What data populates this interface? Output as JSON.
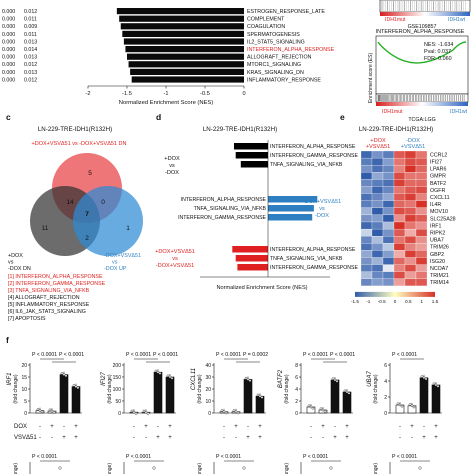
{
  "panel_a": {
    "rows": [
      {
        "p": "0.000",
        "fdr": "0.012",
        "name": "ESTROGEN_RESPONSE_LATE",
        "nes": -1.63,
        "red": false
      },
      {
        "p": "0.000",
        "fdr": "0.011",
        "name": "COMPLEMENT",
        "nes": -1.6,
        "red": false
      },
      {
        "p": "0.000",
        "fdr": "0.009",
        "name": "COAGULATION",
        "nes": -1.58,
        "red": false
      },
      {
        "p": "0.000",
        "fdr": "0.011",
        "name": "SPERMATOGENESIS",
        "nes": -1.56,
        "red": false
      },
      {
        "p": "0.000",
        "fdr": "0.013",
        "name": "IL2_STAT5_SIGNALING",
        "nes": -1.54,
        "red": false
      },
      {
        "p": "0.000",
        "fdr": "0.014",
        "name": "INTERFERON_ALPHA_RESPONSE",
        "nes": -1.52,
        "red": true
      },
      {
        "p": "0.000",
        "fdr": "0.013",
        "name": "ALLOGRAFT_REJECTION",
        "nes": -1.5,
        "red": false
      },
      {
        "p": "0.000",
        "fdr": "0.012",
        "name": "MTORC1_SIGNALING",
        "nes": -1.48,
        "red": false
      },
      {
        "p": "0.000",
        "fdr": "0.013",
        "name": "KRAS_SIGNALING_DN",
        "nes": -1.46,
        "red": false
      },
      {
        "p": "0.000",
        "fdr": "0.012",
        "name": "INFLAMMATORY_RESPONSE",
        "nes": -1.44,
        "red": false
      }
    ],
    "ticks": [
      "-2",
      "-1.5",
      "-1",
      "-0.5",
      "0"
    ],
    "xlabel": "Normalized Enrichment Score (NES)"
  },
  "panel_b": {
    "top_labels": [
      "IDH1mut",
      "IDH1wt"
    ],
    "top_dataset": "GSE109857",
    "gsea_title": "INTERFERON_ALPHA_RESPONSE",
    "stats": [
      "NES: -1.634",
      "Pval: 0.037",
      "FDR: 0.060"
    ],
    "ylabel": "Enrichment score (ES)",
    "bottom_labels": [
      "IDH1mut",
      "IDH1wt"
    ],
    "dataset": "TCGA:LGG"
  },
  "panel_c": {
    "letter": "c",
    "title": "LN-229-TRE-IDH1(R132H)",
    "set_top": "+DOX+VSVΔ51 vs -DOX+VSVΔ51 DN",
    "counts": {
      "top": "5",
      "left": "11",
      "right": "1",
      "tl": "14",
      "tr": "0",
      "lr": "2",
      "center": "7"
    },
    "left_label": [
      "+DOX",
      "vs",
      "-DOX DN"
    ],
    "right_label": [
      "-DOX+VSVΔ51",
      "vs",
      "-DOX UP"
    ],
    "legend": [
      {
        "text": "[1] INTERFERON_ALPHA_RESPONSE",
        "red": true
      },
      {
        "text": "[2] INTERFERON_GAMMA_RESPONSE",
        "red": true
      },
      {
        "text": "[3] TNFA_SIGNALING_VIA_NFKB",
        "red": true
      },
      {
        "text": "[4] ALLOGRAFT_REJECTION",
        "red": false
      },
      {
        "text": "[5] INFLAMMATORY_RESPONSE",
        "red": false
      },
      {
        "text": "[6] IL6_JAK_STAT3_SIGNALING",
        "red": false
      },
      {
        "text": "[7] APOPTOSIS",
        "red": false
      }
    ]
  },
  "panel_d": {
    "letter": "d",
    "title": "LN-229-TRE-IDH1(R132H)",
    "groups": [
      {
        "label": [
          "+DOX",
          "vs",
          "-DOX"
        ],
        "color": "#000000",
        "bars": [
          {
            "name": "INTERFERON_ALPHA_RESPONSE",
            "nes": -2.0
          },
          {
            "name": "INTERFERON_GAMMA_RESPONSE",
            "nes": -1.9
          },
          {
            "name": "TNFA_SIGNALING_VIA_NFKB",
            "nes": -1.6
          }
        ]
      },
      {
        "label": [
          "-DOX+VSVΔ51",
          "vs",
          "-DOX"
        ],
        "color": "#2e7fc1",
        "bars": [
          {
            "name": "INTERFERON_ALPHA_RESPONSE",
            "nes": 2.9
          },
          {
            "name": "TNFA_SIGNALING_VIA_NFKB",
            "nes": 2.7
          },
          {
            "name": "INTERFERON_GAMMA_RESPONSE",
            "nes": 2.6
          }
        ]
      },
      {
        "label": [
          "+DOX+VSVΔ51",
          "vs",
          "-DOX+VSVΔ51"
        ],
        "color": "#e02020",
        "bars": [
          {
            "name": "INTERFERON_ALPHA_RESPONSE",
            "nes": -2.1
          },
          {
            "name": "TNFA_SIGNALING_VIA_NFKB",
            "nes": -1.9
          },
          {
            "name": "INTERFERON_GAMMA_RESPONSE",
            "nes": -1.8
          }
        ]
      }
    ],
    "xlabel": "Normalized Enrichment Score (NES)"
  },
  "panel_e": {
    "letter": "e",
    "title": "LN-229-TRE-IDH1(R132H)",
    "col_headers": [
      {
        "text": "+DOX",
        "color": "#e02020"
      },
      {
        "text": "-DOX",
        "color": "#2e7fc1"
      }
    ],
    "col_headers2": [
      {
        "text": "+VSVΔ51",
        "color": "#e02020"
      },
      {
        "text": "+VSVΔ51",
        "color": "#2e7fc1"
      }
    ],
    "genes": [
      "CCRL2",
      "IFI27",
      "LPAR6",
      "GMPR",
      "BATF2",
      "OGFR",
      "CXCL11",
      "IL4R",
      "MOV10",
      "SLC25A28",
      "IRF1",
      "RIPK2",
      "UBA7",
      "TRIM26",
      "GBP2",
      "ISG20",
      "NCOA7",
      "TRIM21",
      "TRIM14"
    ],
    "heatmap": [
      [
        -1.4,
        -1.0,
        -1.2,
        1.2,
        1.4,
        1.0
      ],
      [
        -1.2,
        -1.4,
        -0.9,
        1.0,
        1.3,
        1.2
      ],
      [
        -1.0,
        -1.3,
        -1.1,
        0.9,
        1.5,
        1.1
      ],
      [
        -1.5,
        -0.8,
        -1.0,
        1.3,
        1.0,
        1.0
      ],
      [
        -1.1,
        -1.2,
        -1.3,
        1.4,
        1.1,
        1.1
      ],
      [
        -0.9,
        -1.4,
        -1.1,
        1.0,
        1.2,
        1.3
      ],
      [
        -1.3,
        -1.1,
        -0.8,
        1.2,
        1.4,
        0.9
      ],
      [
        -1.2,
        -1.0,
        -1.4,
        1.1,
        1.0,
        1.5
      ],
      [
        -0.7,
        -1.5,
        -1.0,
        1.3,
        1.2,
        0.8
      ],
      [
        -1.0,
        -0.9,
        -1.5,
        0.8,
        1.4,
        1.2
      ],
      [
        -1.4,
        -1.2,
        -0.6,
        1.5,
        1.0,
        0.8
      ],
      [
        -0.4,
        -1.5,
        -1.0,
        1.2,
        0.6,
        1.3
      ],
      [
        -1.1,
        -0.6,
        -1.3,
        1.0,
        1.3,
        0.8
      ],
      [
        -1.3,
        -1.0,
        -0.5,
        1.4,
        0.9,
        0.7
      ],
      [
        -0.8,
        -1.4,
        -0.9,
        0.6,
        1.4,
        1.1
      ],
      [
        -1.0,
        -0.7,
        -1.4,
        1.1,
        0.8,
        1.4
      ],
      [
        -1.2,
        -1.3,
        -0.2,
        0.9,
        1.3,
        0.7
      ],
      [
        -0.6,
        -1.1,
        -1.2,
        1.3,
        0.7,
        1.0
      ],
      [
        -1.1,
        -0.9,
        -1.0,
        0.7,
        1.2,
        1.2
      ]
    ],
    "colorbar_ticks": [
      "-1.5",
      "-1",
      "-0.5",
      "0",
      "0.5",
      "1",
      "1.5"
    ]
  },
  "panel_f": {
    "letter": "f",
    "row_labels": [
      "DOX",
      "VSVΔ51"
    ],
    "signs_dox": [
      "-",
      "+",
      "-",
      "+"
    ],
    "signs_vsv": [
      "-",
      "-",
      "+",
      "+"
    ],
    "pval_text": "P < 0.0001",
    "charts": [
      {
        "gene": "IRF1",
        "ylabel": "(fold change)",
        "ticks": [
          "0",
          "5",
          "10",
          "15",
          "20"
        ],
        "ymax": 20,
        "means": [
          1.0,
          0.8,
          16.0,
          11.0
        ],
        "pvals": [
          "P < 0.0001",
          "P < 0.0001"
        ]
      },
      {
        "gene": "IFI27",
        "ylabel": "(fold change)",
        "ticks": [
          "0",
          "50",
          "100",
          "150",
          "200"
        ],
        "ymax": 200,
        "means": [
          1,
          1,
          170,
          150
        ],
        "pvals": [
          "P < 0.0001",
          "P < 0.0001"
        ]
      },
      {
        "gene": "CXCL11",
        "ylabel": "(fold change)",
        "ticks": [
          "0",
          "10",
          "20",
          "30",
          "40"
        ],
        "ymax": 40,
        "means": [
          1,
          1,
          28,
          14
        ],
        "pvals": [
          "P < 0.0001",
          "P = 0.0002"
        ]
      },
      {
        "gene": "BATF2",
        "ylabel": "(fold change)",
        "ticks": [
          "0",
          "2",
          "4",
          "6",
          "8"
        ],
        "ymax": 8,
        "means": [
          1,
          0.5,
          5.5,
          3.5
        ],
        "pvals": [
          "P < 0.0001",
          "P < 0.0001"
        ]
      },
      {
        "gene": "UBA7",
        "ylabel": "(fold change)",
        "ticks": [
          "0",
          "2",
          "4",
          "6"
        ],
        "ymax": 6,
        "means": [
          1,
          0.9,
          4.4,
          3.5
        ],
        "pvals": [
          "P < 0.0001"
        ]
      }
    ],
    "second_row_pvals": [
      "P < 0.0001",
      "P < 0.0001",
      "P < 0.0001",
      "P < 0.0001",
      "P < 0.0001"
    ],
    "second_row_ylabel": "change)"
  },
  "chart_data": [
    {
      "type": "bar",
      "categories": [
        "ESTROGEN_RESPONSE_LATE",
        "COMPLEMENT",
        "COAGULATION",
        "SPERMATOGENESIS",
        "IL2_STAT5_SIGNALING",
        "INTERFERON_ALPHA_RESPONSE",
        "ALLOGRAFT_REJECTION",
        "MTORC1_SIGNALING",
        "KRAS_SIGNALING_DN",
        "INFLAMMATORY_RESPONSE"
      ],
      "values": [
        -1.63,
        -1.6,
        -1.58,
        -1.56,
        -1.54,
        -1.52,
        -1.5,
        -1.48,
        -1.46,
        -1.44
      ],
      "xlabel": "Normalized Enrichment Score (NES)",
      "xlim": [
        -2,
        0
      ]
    },
    {
      "type": "bar",
      "categories": [
        "IRF1",
        "IFI27",
        "CXCL11",
        "BATF2",
        "UBA7"
      ],
      "series": [
        {
          "values": [
            1.0,
            1,
            1,
            1,
            1
          ]
        },
        {
          "values": [
            0.8,
            1,
            1,
            0.5,
            0.9
          ]
        },
        {
          "values": [
            16.0,
            170,
            28,
            5.5,
            4.4
          ]
        },
        {
          "values": [
            11.0,
            150,
            14,
            3.5,
            3.5
          ]
        }
      ]
    }
  ]
}
